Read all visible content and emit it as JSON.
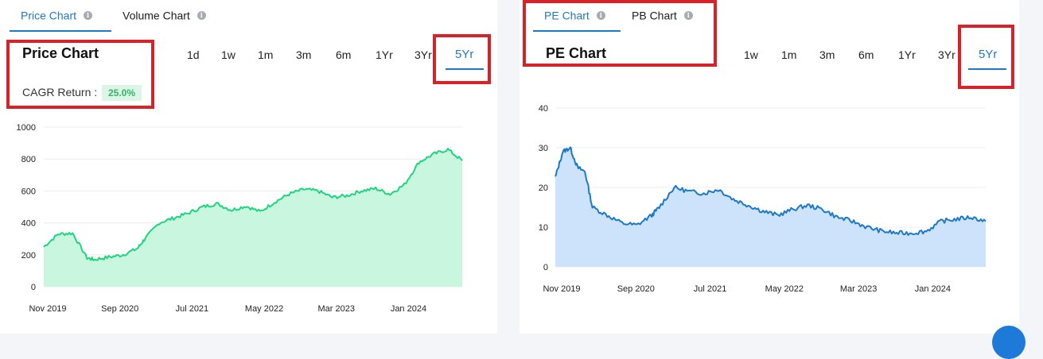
{
  "left": {
    "tabs": [
      {
        "label": "Price Chart",
        "active": true
      },
      {
        "label": "Volume Chart",
        "active": false
      }
    ],
    "title": "Price Chart",
    "ranges": [
      "1d",
      "1w",
      "1m",
      "3m",
      "6m",
      "1Yr",
      "3Yr",
      "5Yr"
    ],
    "active_range": "5Yr",
    "cagr_label": "CAGR Return :",
    "cagr_value": "25.0%"
  },
  "right": {
    "tabs": [
      {
        "label": "PE Chart",
        "active": true
      },
      {
        "label": "PB Chart",
        "active": false
      }
    ],
    "title": "PE Chart",
    "ranges": [
      "1w",
      "1m",
      "3m",
      "6m",
      "1Yr",
      "3Yr",
      "5Yr"
    ],
    "active_range": "5Yr"
  },
  "colors": {
    "accent": "#1c79c9",
    "highlight": "#d7222a",
    "price_line": "#1ed67e",
    "price_fill": "#c9f6de",
    "pe_line": "#1c79c9",
    "pe_fill": "#cde3fb"
  },
  "chart_data": [
    {
      "type": "area",
      "title": "Price Chart",
      "x_ticks": [
        "Nov 2019",
        "Sep 2020",
        "Jul 2021",
        "May 2022",
        "Mar 2023",
        "Jan 2024"
      ],
      "ylim": [
        0,
        1000
      ],
      "y_ticks": [
        0,
        200,
        400,
        600,
        800,
        1000
      ],
      "grid": true,
      "x": [
        "2019-11",
        "2020-01",
        "2020-03",
        "2020-05",
        "2020-06",
        "2020-08",
        "2020-10",
        "2020-12",
        "2021-01",
        "2021-03",
        "2021-05",
        "2021-07",
        "2021-09",
        "2021-11",
        "2022-01",
        "2022-03",
        "2022-05",
        "2022-07",
        "2022-09",
        "2022-11",
        "2023-01",
        "2023-03",
        "2023-05",
        "2023-07",
        "2023-09",
        "2023-11",
        "2024-01",
        "2024-03",
        "2024-05",
        "2024-07",
        "2024-09"
      ],
      "series": [
        {
          "values": [
            250,
            330,
            335,
            180,
            170,
            185,
            200,
            240,
            300,
            400,
            430,
            460,
            500,
            520,
            480,
            505,
            470,
            530,
            580,
            610,
            600,
            560,
            570,
            600,
            615,
            580,
            640,
            780,
            830,
            860,
            790
          ]
        }
      ]
    },
    {
      "type": "area",
      "title": "PE Chart",
      "x_ticks": [
        "Nov 2019",
        "Sep 2020",
        "Jul 2021",
        "May 2022",
        "Mar 2023",
        "Jan 2024"
      ],
      "ylim": [
        0,
        40
      ],
      "y_ticks": [
        0,
        10,
        20,
        30,
        40
      ],
      "grid": true,
      "x": [
        "2019-11",
        "2019-12",
        "2020-01",
        "2020-02",
        "2020-03",
        "2020-04",
        "2020-06",
        "2020-08",
        "2020-10",
        "2020-12",
        "2021-01",
        "2021-03",
        "2021-05",
        "2021-07",
        "2021-09",
        "2021-11",
        "2022-01",
        "2022-03",
        "2022-05",
        "2022-07",
        "2022-09",
        "2022-11",
        "2023-01",
        "2023-03",
        "2023-05",
        "2023-07",
        "2023-09",
        "2023-11",
        "2024-01",
        "2024-03",
        "2024-05",
        "2024-07",
        "2024-09"
      ],
      "series": [
        {
          "values": [
            22.5,
            29,
            30,
            25,
            24,
            15,
            13,
            11,
            10.5,
            13,
            15,
            20,
            19,
            18.5,
            19.5,
            17,
            15.5,
            14,
            13,
            14.5,
            15.5,
            14.5,
            12.5,
            11.5,
            10,
            9,
            8.5,
            8.5,
            9,
            11.5,
            12,
            12.5,
            11.5
          ]
        }
      ]
    }
  ]
}
